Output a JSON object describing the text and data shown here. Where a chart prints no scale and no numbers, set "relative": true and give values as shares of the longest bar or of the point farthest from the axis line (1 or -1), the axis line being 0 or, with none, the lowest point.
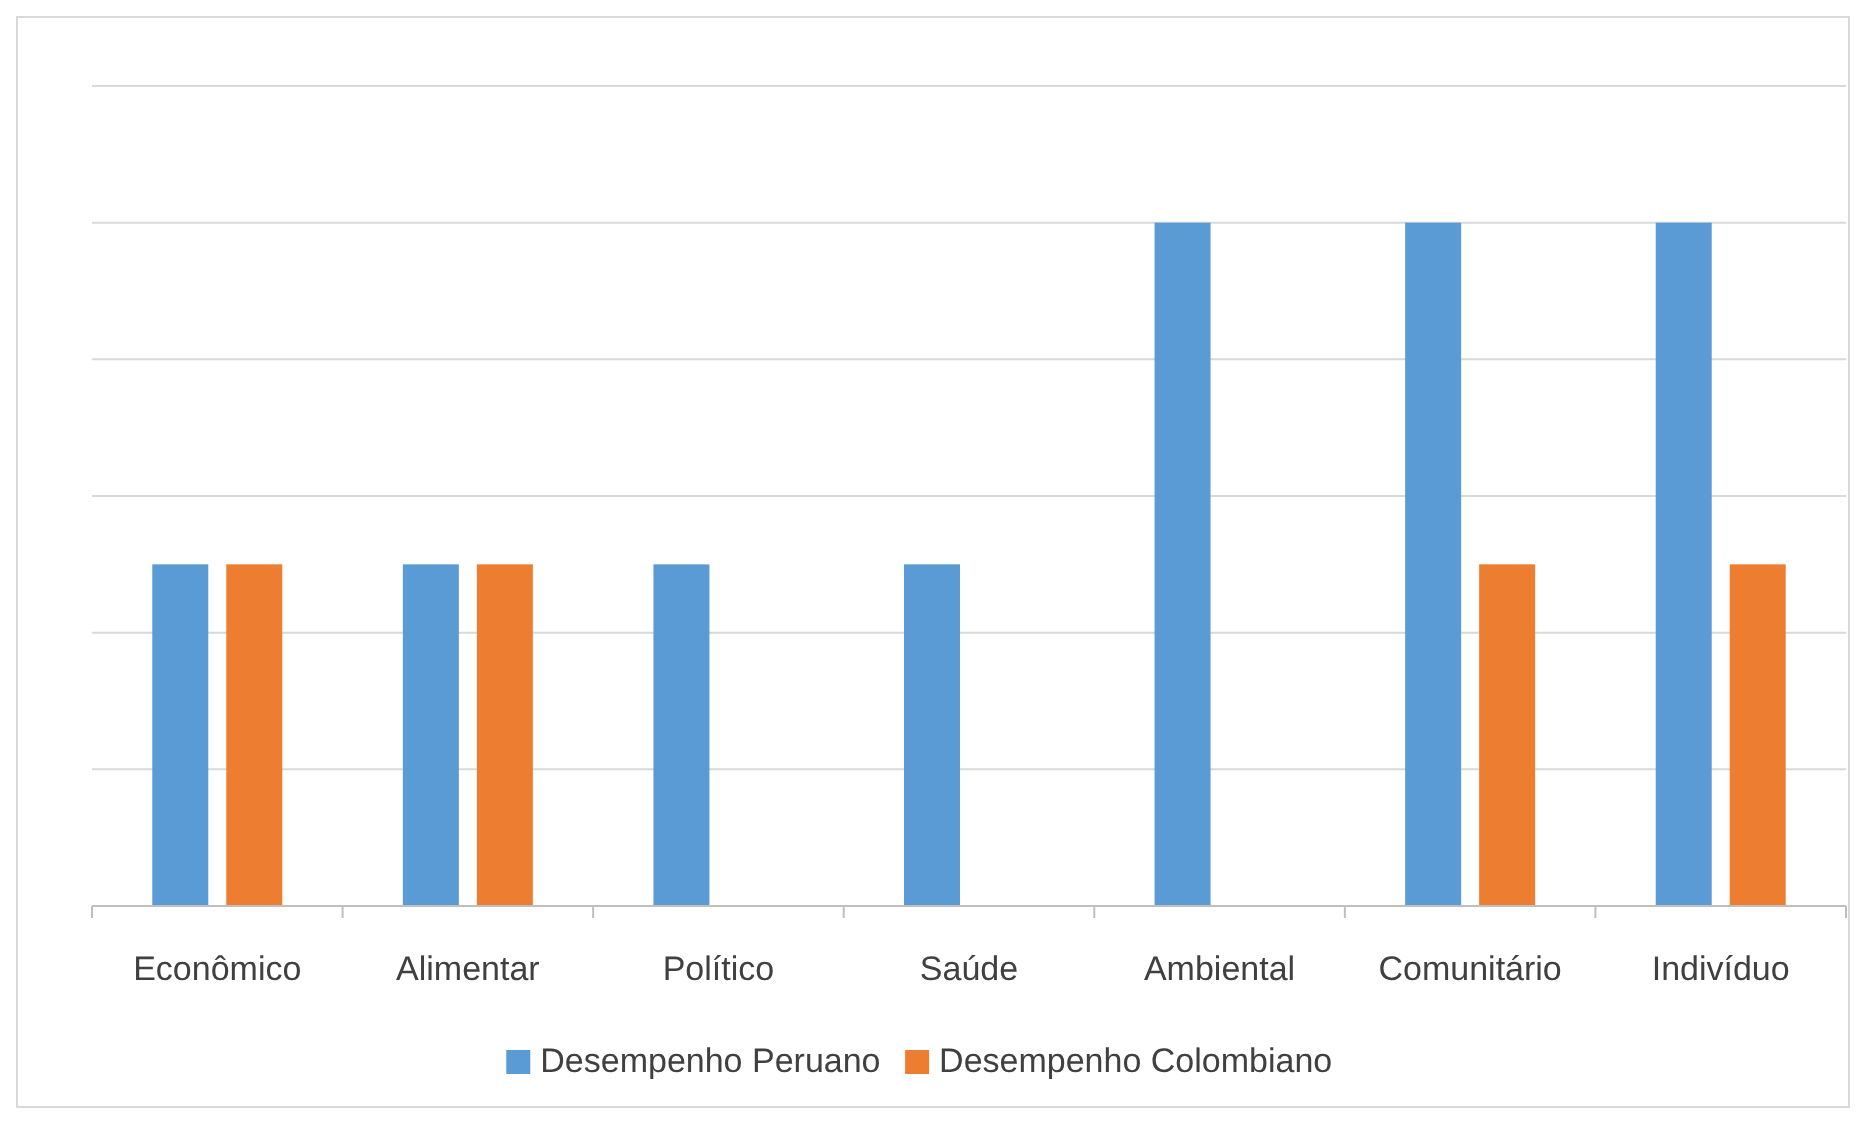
{
  "chart_data": {
    "type": "bar",
    "relative": true,
    "grid": true,
    "legend": "bottom",
    "categories": [
      "Econômico",
      "Alimentar",
      "Político",
      "Saúde",
      "Ambiental",
      "Comunitário",
      "Indivíduo"
    ],
    "series": [
      {
        "name": "Desempenho Peruano",
        "color": "#5b9bd5",
        "values": [
          0.5,
          0.5,
          0.5,
          0.5,
          1,
          1,
          1
        ]
      },
      {
        "name": "Desempenho Colombiano",
        "color": "#ed7d31",
        "values": [
          0.5,
          0.5,
          0,
          0,
          0,
          0.5,
          0.5
        ]
      }
    ]
  }
}
